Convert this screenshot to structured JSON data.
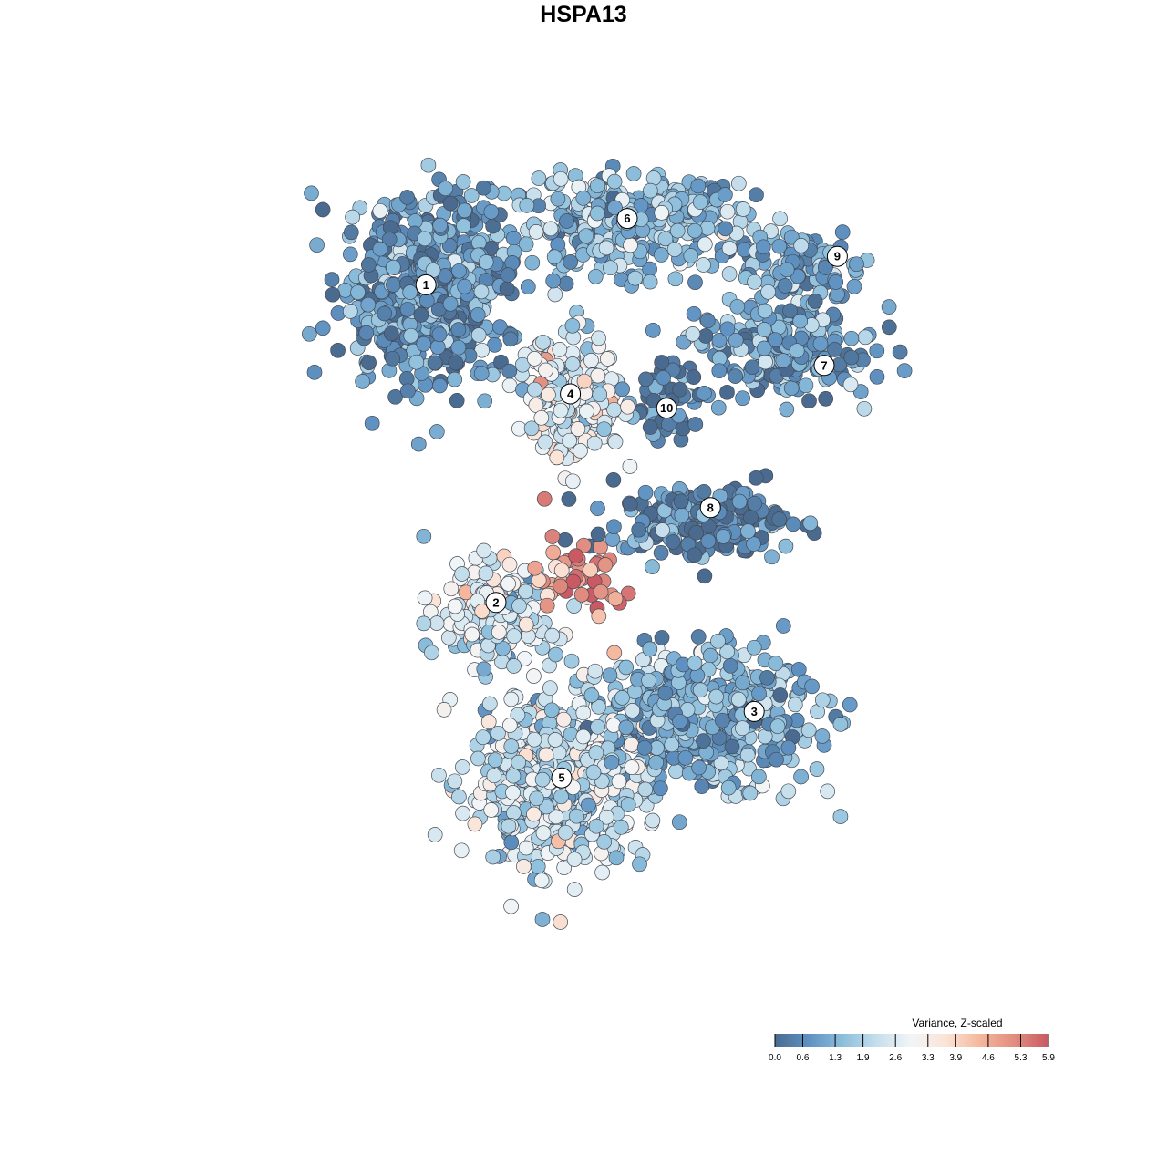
{
  "chart_data": {
    "type": "scatter",
    "title": "HSPA13",
    "subtitle": "",
    "xlabel": "",
    "ylabel": "",
    "grid": false,
    "legend_placement": "bottom-right",
    "colorbar": {
      "title": "Variance, Z-scaled",
      "ticks": [
        "0.0",
        "0.6",
        "1.3",
        "1.9",
        "2.6",
        "3.3",
        "3.9",
        "4.6",
        "5.3",
        "5.9"
      ],
      "range": [
        0.0,
        5.9
      ],
      "colors": [
        "#4a6b8f",
        "#5f92c2",
        "#8dbfdc",
        "#c6dfec",
        "#f2f5f7",
        "#fbe3d6",
        "#f5b79d",
        "#e18d80",
        "#c95963"
      ]
    },
    "clusters": [
      {
        "label": "1",
        "x": -0.36,
        "y": 0.62,
        "sd": [
          0.09,
          0.1
        ],
        "value": 0.9,
        "n": 600
      },
      {
        "label": "6",
        "x": 0.1,
        "y": 0.76,
        "sd": [
          0.14,
          0.05
        ],
        "value": 1.5,
        "n": 380
      },
      {
        "label": "9",
        "x": 0.5,
        "y": 0.67,
        "sd": [
          0.07,
          0.04
        ],
        "value": 1.2,
        "n": 110
      },
      {
        "label": "7",
        "x": 0.46,
        "y": 0.49,
        "sd": [
          0.1,
          0.05
        ],
        "value": 1.0,
        "n": 200
      },
      {
        "label": "4",
        "x": -0.03,
        "y": 0.4,
        "sd": [
          0.06,
          0.06
        ],
        "value": 2.6,
        "n": 230
      },
      {
        "label": "10",
        "x": 0.2,
        "y": 0.38,
        "sd": [
          0.04,
          0.04
        ],
        "value": 0.4,
        "n": 60
      },
      {
        "label": "8",
        "x": 0.27,
        "y": 0.13,
        "sd": [
          0.1,
          0.04
        ],
        "value": 0.5,
        "n": 210
      },
      {
        "label": "2",
        "x": -0.2,
        "y": -0.06,
        "sd": [
          0.07,
          0.05
        ],
        "value": 2.5,
        "n": 200
      },
      {
        "label": "3",
        "x": 0.28,
        "y": -0.28,
        "sd": [
          0.12,
          0.07
        ],
        "value": 1.4,
        "n": 480
      },
      {
        "label": "5",
        "x": -0.06,
        "y": -0.41,
        "sd": [
          0.1,
          0.09
        ],
        "value": 2.3,
        "n": 560
      }
    ],
    "annotations": [
      {
        "label": "1",
        "x": -0.36,
        "y": 0.63
      },
      {
        "label": "6",
        "x": 0.1,
        "y": 0.77
      },
      {
        "label": "9",
        "x": 0.58,
        "y": 0.69
      },
      {
        "label": "7",
        "x": 0.55,
        "y": 0.46
      },
      {
        "label": "4",
        "x": -0.03,
        "y": 0.4
      },
      {
        "label": "10",
        "x": 0.19,
        "y": 0.37
      },
      {
        "label": "8",
        "x": 0.29,
        "y": 0.16
      },
      {
        "label": "2",
        "x": -0.2,
        "y": -0.04
      },
      {
        "label": "3",
        "x": 0.39,
        "y": -0.27
      },
      {
        "label": "5",
        "x": -0.05,
        "y": -0.41
      }
    ],
    "hotspot": {
      "x": -0.01,
      "y": 0.0,
      "sd": [
        0.04,
        0.05
      ],
      "value": 5.2,
      "n": 40
    }
  }
}
